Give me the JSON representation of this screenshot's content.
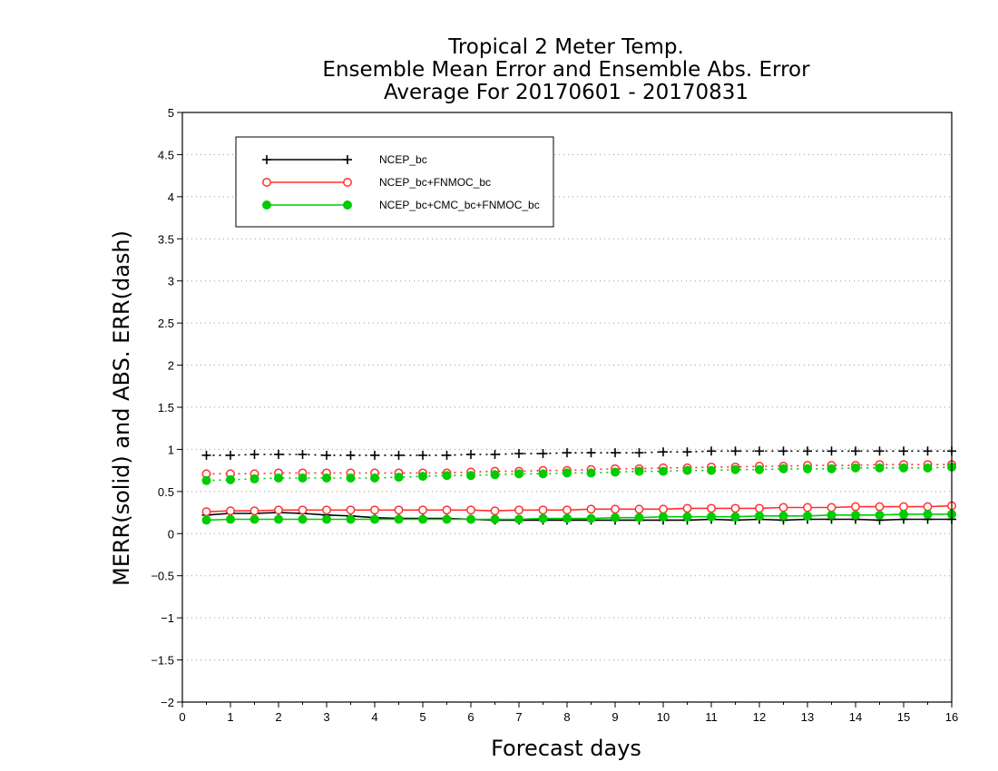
{
  "chart_data": {
    "type": "line",
    "title": [
      "Tropical 2 Meter Temp.",
      "Ensemble Mean Error and Ensemble Abs. Error",
      "Average For 20170601 - 20170831"
    ],
    "xlabel": "Forecast days",
    "ylabel": "MERR(solid) and ABS. ERR(dash)",
    "xlim": [
      0,
      16
    ],
    "ylim": [
      -2,
      5
    ],
    "x_ticks": [
      "0",
      "1",
      "2",
      "3",
      "4",
      "5",
      "6",
      "7",
      "8",
      "9",
      "10",
      "11",
      "12",
      "13",
      "14",
      "15",
      "16"
    ],
    "y_ticks": [
      "−2",
      "−1.5",
      "−1",
      "−0.5",
      "0",
      "0.5",
      "1",
      "1.5",
      "2",
      "2.5",
      "3",
      "3.5",
      "4",
      "4.5",
      "5"
    ],
    "grid": "horizontal-dotted",
    "legend_position": "top-left",
    "x": [
      0.5,
      1,
      1.5,
      2,
      2.5,
      3,
      3.5,
      4,
      4.5,
      5,
      5.5,
      6,
      6.5,
      7,
      7.5,
      8,
      8.5,
      9,
      9.5,
      10,
      10.5,
      11,
      11.5,
      12,
      12.5,
      13,
      13.5,
      14,
      14.5,
      15,
      15.5,
      16
    ],
    "series": [
      {
        "name": "NCEP_bc",
        "color": "#000000",
        "marker": "plus",
        "merr": [
          0.22,
          0.24,
          0.24,
          0.25,
          0.24,
          0.22,
          0.21,
          0.19,
          0.18,
          0.18,
          0.18,
          0.17,
          0.16,
          0.16,
          0.16,
          0.16,
          0.16,
          0.16,
          0.16,
          0.16,
          0.16,
          0.17,
          0.16,
          0.17,
          0.16,
          0.17,
          0.17,
          0.17,
          0.16,
          0.17,
          0.17,
          0.17
        ],
        "abs_err": [
          0.93,
          0.93,
          0.94,
          0.94,
          0.94,
          0.93,
          0.93,
          0.93,
          0.93,
          0.93,
          0.93,
          0.94,
          0.94,
          0.95,
          0.95,
          0.96,
          0.96,
          0.96,
          0.96,
          0.97,
          0.97,
          0.98,
          0.98,
          0.98,
          0.98,
          0.98,
          0.98,
          0.98,
          0.98,
          0.98,
          0.98,
          0.98
        ]
      },
      {
        "name": "NCEP_bc+FNMOC_bc",
        "color": "#ff3030",
        "marker": "open-circle",
        "merr": [
          0.26,
          0.27,
          0.27,
          0.28,
          0.28,
          0.28,
          0.28,
          0.28,
          0.28,
          0.28,
          0.28,
          0.28,
          0.27,
          0.28,
          0.28,
          0.28,
          0.29,
          0.29,
          0.29,
          0.29,
          0.3,
          0.3,
          0.3,
          0.3,
          0.31,
          0.31,
          0.31,
          0.32,
          0.32,
          0.32,
          0.32,
          0.33
        ],
        "abs_err": [
          0.71,
          0.71,
          0.71,
          0.72,
          0.72,
          0.72,
          0.72,
          0.72,
          0.72,
          0.72,
          0.72,
          0.73,
          0.74,
          0.74,
          0.75,
          0.75,
          0.76,
          0.77,
          0.77,
          0.78,
          0.78,
          0.79,
          0.79,
          0.8,
          0.8,
          0.81,
          0.81,
          0.81,
          0.82,
          0.82,
          0.82,
          0.82
        ]
      },
      {
        "name": "NCEP_bc+CMC_bc+FNMOC_bc",
        "color": "#00cc00",
        "marker": "filled-circle",
        "merr": [
          0.16,
          0.17,
          0.17,
          0.17,
          0.17,
          0.17,
          0.17,
          0.17,
          0.17,
          0.17,
          0.17,
          0.17,
          0.17,
          0.17,
          0.18,
          0.18,
          0.18,
          0.19,
          0.19,
          0.2,
          0.2,
          0.2,
          0.2,
          0.21,
          0.21,
          0.21,
          0.22,
          0.22,
          0.22,
          0.23,
          0.23,
          0.23
        ],
        "abs_err": [
          0.63,
          0.64,
          0.65,
          0.66,
          0.66,
          0.66,
          0.66,
          0.66,
          0.67,
          0.68,
          0.69,
          0.69,
          0.7,
          0.71,
          0.71,
          0.72,
          0.72,
          0.73,
          0.74,
          0.74,
          0.75,
          0.75,
          0.76,
          0.76,
          0.77,
          0.77,
          0.77,
          0.78,
          0.78,
          0.78,
          0.78,
          0.79
        ]
      }
    ]
  }
}
